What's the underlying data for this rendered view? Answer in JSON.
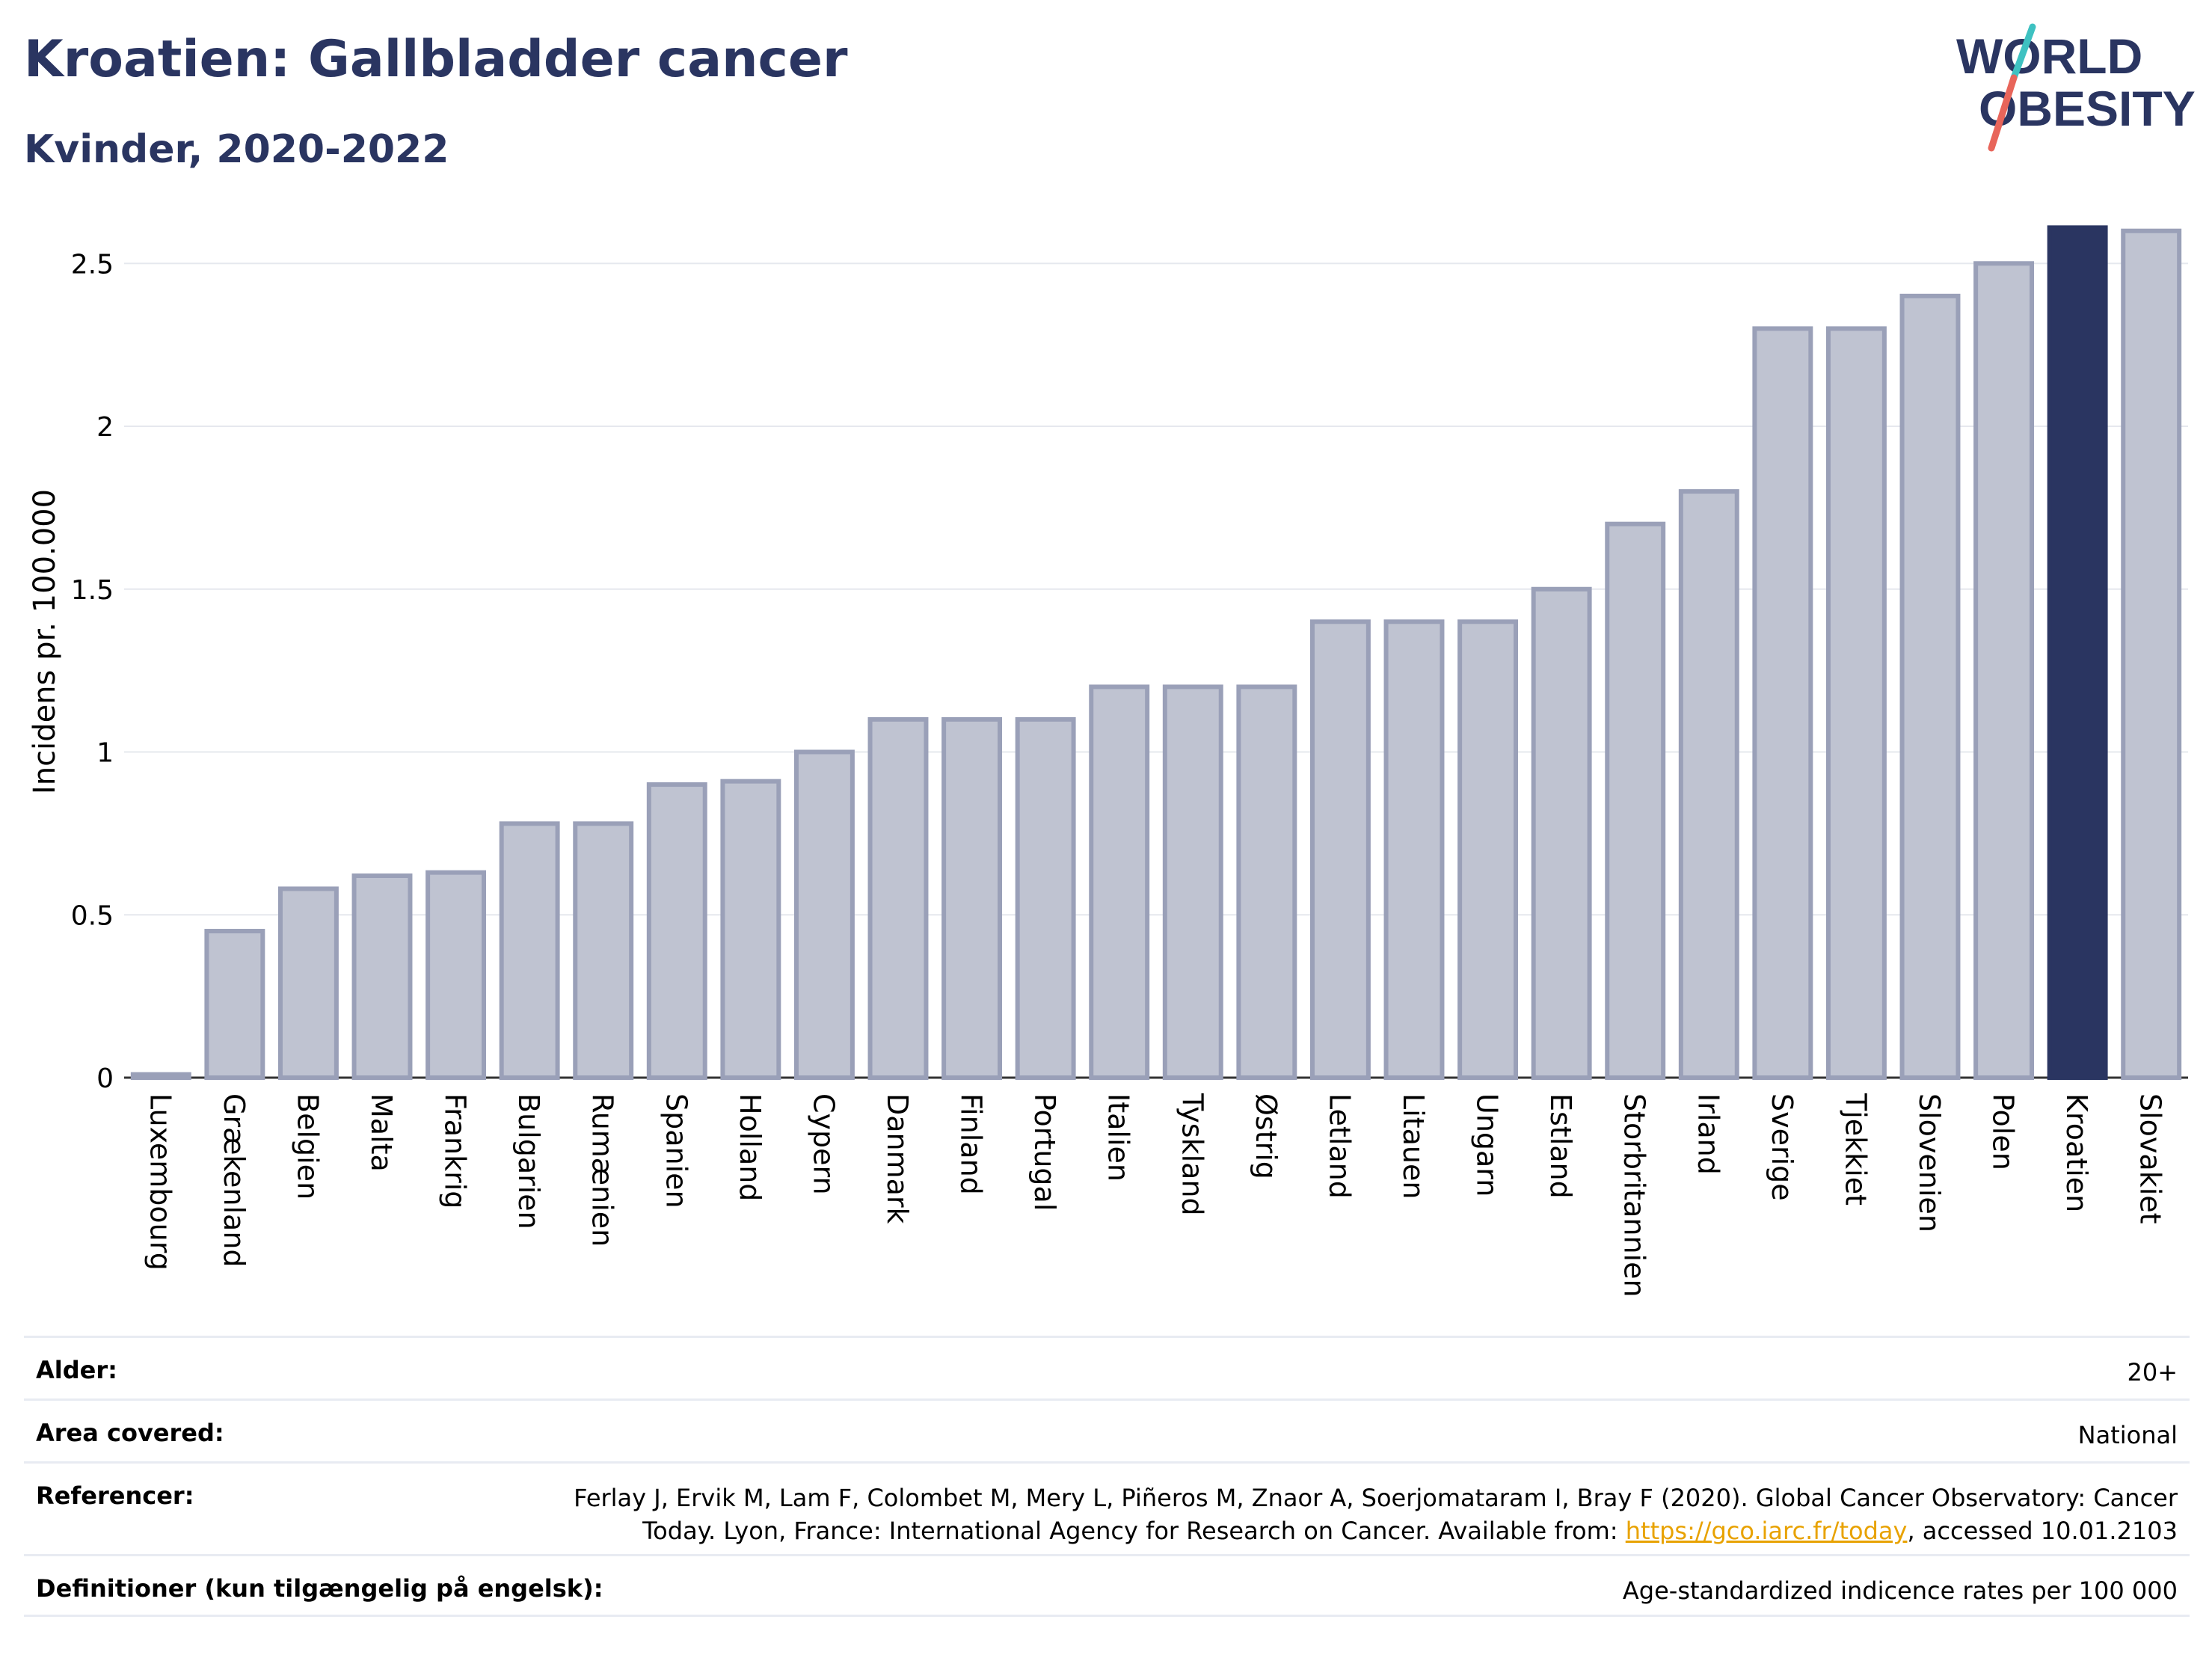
{
  "header": {
    "title": "Kroatien: Gallbladder cancer",
    "subtitle": "Kvinder, 2020-2022"
  },
  "logo": {
    "line1": "WORLD",
    "line2": "OBESITY"
  },
  "colors": {
    "highlight": "#2a3561",
    "bar": "#bfc3d1",
    "bar_border": "#9aa0b8",
    "accent_red": "#e8655a",
    "accent_teal": "#3ec1c1"
  },
  "chart_data": {
    "type": "bar",
    "ylabel": "Incidens pr. 100.000",
    "ylim": [
      0,
      2.62
    ],
    "yticks": [
      0,
      0.5,
      1,
      1.5,
      2,
      2.5
    ],
    "ytick_labels": [
      "0",
      "0.5",
      "1",
      "1.5",
      "2",
      "2.5"
    ],
    "highlight": "Kroatien",
    "grid": true,
    "categories": [
      "Luxembourg",
      "Grækenland",
      "Belgien",
      "Malta",
      "Frankrig",
      "Bulgarien",
      "Rumænien",
      "Spanien",
      "Holland",
      "Cypern",
      "Danmark",
      "Finland",
      "Portugal",
      "Italien",
      "Tyskland",
      "Østrig",
      "Letland",
      "Litauen",
      "Ungarn",
      "Estland",
      "Storbritannien",
      "Irland",
      "Sverige",
      "Tjekkiet",
      "Slovenien",
      "Polen",
      "Kroatien",
      "Slovakiet"
    ],
    "values": [
      0.01,
      0.45,
      0.58,
      0.62,
      0.63,
      0.78,
      0.78,
      0.9,
      0.91,
      1.0,
      1.1,
      1.1,
      1.1,
      1.2,
      1.2,
      1.2,
      1.4,
      1.4,
      1.4,
      1.5,
      1.7,
      1.8,
      2.3,
      2.3,
      2.4,
      2.5,
      2.61,
      2.6
    ]
  },
  "info": {
    "age_label": "Alder:",
    "age_value": "20+",
    "area_label": "Area covered:",
    "area_value": "National",
    "ref_label": "Referencer:",
    "ref_line1": "Ferlay J, Ervik M, Lam F, Colombet M, Mery L, Piñeros M, Znaor A, Soerjomataram I, Bray F (2020). Global Cancer Observatory: Cancer",
    "ref_line2_pre": "Today. Lyon, France: International Agency for Research on Cancer. Available from: ",
    "ref_link": "https://gco.iarc.fr/today",
    "ref_line2_post": ", accessed 10.01.2103",
    "def_label": "Definitioner (kun tilgængelig på engelsk):",
    "def_value": "Age-standardized indicence rates per 100 000"
  }
}
